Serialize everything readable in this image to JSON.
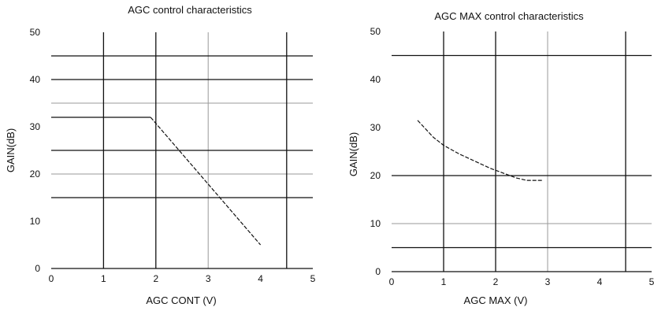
{
  "chart_data": [
    {
      "type": "line",
      "title": "AGC control characteristics",
      "xlabel": "AGC CONT (V)",
      "ylabel": "GAIN(dB)",
      "xlim": [
        0,
        5
      ],
      "ylim": [
        0,
        50
      ],
      "xticks": [
        "0",
        "1",
        "2",
        "3",
        "4",
        "5"
      ],
      "yticks": [
        "0",
        "10",
        "20",
        "30",
        "40",
        "50"
      ],
      "grid": true,
      "series": [
        {
          "segments": [
            {
              "style": "solid",
              "x": [
                0,
                1.9
              ],
              "y": [
                32,
                32
              ]
            },
            {
              "style": "dashed",
              "x": [
                1.9,
                4.0
              ],
              "y": [
                32,
                5
              ]
            }
          ]
        }
      ]
    },
    {
      "type": "line",
      "title": "AGC MAX control characteristics",
      "xlabel": "AGC MAX (V)",
      "ylabel": "GAIN(dB)",
      "xlim": [
        0,
        5
      ],
      "ylim": [
        0,
        50
      ],
      "xticks": [
        "0",
        "1",
        "2",
        "3",
        "4",
        "5"
      ],
      "yticks": [
        "0",
        "10",
        "20",
        "30",
        "40",
        "50"
      ],
      "grid": true,
      "series": [
        {
          "segments": [
            {
              "style": "dashed",
              "x": [
                0.5,
                0.8,
                1.0,
                1.3,
                1.6,
                1.9,
                2.1,
                2.4,
                2.6,
                2.9
              ],
              "y": [
                31.5,
                28,
                26.3,
                24.5,
                23,
                21.5,
                20.7,
                19.5,
                19,
                19
              ]
            }
          ]
        }
      ]
    }
  ]
}
